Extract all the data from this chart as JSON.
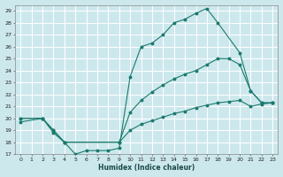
{
  "xlabel": "Humidex (Indice chaleur)",
  "bg_color": "#cde8ed",
  "line_color": "#1a7a6e",
  "grid_color": "#ffffff",
  "xlim": [
    -0.5,
    23.5
  ],
  "ylim": [
    17,
    29.5
  ],
  "yticks": [
    17,
    18,
    19,
    20,
    21,
    22,
    23,
    24,
    25,
    26,
    27,
    28,
    29
  ],
  "xticks": [
    0,
    1,
    2,
    3,
    4,
    5,
    6,
    7,
    8,
    9,
    10,
    11,
    12,
    13,
    14,
    15,
    16,
    17,
    18,
    19,
    20,
    21,
    22,
    23
  ],
  "curve1_x": [
    0,
    2,
    3,
    4,
    5,
    6,
    7,
    8,
    9,
    10,
    11,
    12,
    13,
    14,
    15,
    16,
    17,
    18,
    20,
    21,
    22,
    23
  ],
  "curve1_y": [
    20,
    20,
    18.8,
    18,
    17,
    17.3,
    17.3,
    17.3,
    17.5,
    23.5,
    26,
    26.3,
    27,
    28,
    28.3,
    28.8,
    29.2,
    28,
    25.5,
    22.3,
    21.3,
    21.3
  ],
  "curve2_x": [
    0,
    2,
    3,
    4,
    9,
    10,
    11,
    12,
    13,
    14,
    15,
    16,
    17,
    18,
    19,
    20,
    21,
    22,
    23
  ],
  "curve2_y": [
    20,
    20,
    19,
    18,
    18,
    20.5,
    21.5,
    22.2,
    22.8,
    23.3,
    23.7,
    24.0,
    24.5,
    25.0,
    25.0,
    24.5,
    22.3,
    21.3,
    21.3
  ],
  "curve3_x": [
    0,
    2,
    3,
    4,
    9,
    10,
    11,
    12,
    13,
    14,
    15,
    16,
    17,
    18,
    19,
    20,
    21,
    22,
    23
  ],
  "curve3_y": [
    19.7,
    20.0,
    19.0,
    18.0,
    18.0,
    19.0,
    19.5,
    19.8,
    20.1,
    20.4,
    20.6,
    20.9,
    21.1,
    21.3,
    21.4,
    21.5,
    21.0,
    21.2,
    21.3
  ]
}
